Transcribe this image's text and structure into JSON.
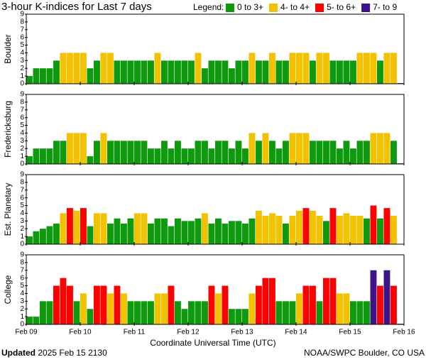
{
  "title": "3-hour K-indices for Last 7 days",
  "legend_label": "Legend:",
  "legend": [
    {
      "name": "0 to 3+",
      "color": "#0f990f"
    },
    {
      "name": "4- to 4+",
      "color": "#f2c200"
    },
    {
      "name": "5- to 6+",
      "color": "#ff0000"
    },
    {
      "name": "7- to 9",
      "color": "#3c1488"
    }
  ],
  "updated_label": "Updated",
  "updated_value": "2025 Feb 15 2130",
  "credit": "NOAA/SWPC Boulder, CO USA",
  "chart_data": [
    {
      "type": "bar",
      "ylabel": "Boulder",
      "ylim": [
        0,
        9
      ],
      "yticks": [
        0,
        1,
        2,
        3,
        4,
        5,
        6,
        7,
        8,
        9
      ],
      "values": [
        1,
        2,
        2,
        2,
        3,
        4,
        4,
        4,
        4,
        2,
        3,
        4,
        4,
        3,
        3,
        3,
        3,
        3,
        3,
        4,
        3,
        3,
        3,
        3,
        3,
        4,
        2,
        3,
        3,
        3,
        2,
        3,
        3,
        4,
        3,
        3,
        4,
        3,
        3,
        4,
        4,
        4,
        3,
        4,
        4,
        3,
        3,
        3,
        3,
        4,
        4,
        4,
        3,
        4,
        4,
        0
      ]
    },
    {
      "type": "bar",
      "ylabel": "Fredericksburg",
      "ylim": [
        0,
        9
      ],
      "yticks": [
        0,
        1,
        2,
        3,
        4,
        5,
        6,
        7,
        8,
        9
      ],
      "values": [
        1,
        2,
        2,
        2,
        3,
        3,
        4,
        4,
        4,
        1,
        3,
        4,
        3,
        3,
        3,
        3,
        3,
        3,
        2,
        2,
        3,
        2,
        3,
        2,
        2,
        3,
        3,
        2,
        3,
        3,
        2,
        3,
        2,
        4,
        3,
        4,
        3,
        2,
        3,
        4,
        4,
        4,
        3,
        3,
        3,
        3,
        2,
        3,
        2,
        3,
        3,
        4,
        4,
        4,
        3,
        0
      ]
    },
    {
      "type": "bar",
      "ylabel": "Est. Planetary",
      "ylim": [
        0,
        9
      ],
      "yticks": [
        0,
        1,
        2,
        3,
        4,
        5,
        6,
        7,
        8,
        9
      ],
      "values": [
        1,
        1.67,
        2,
        2.33,
        2.67,
        4,
        4.67,
        4.33,
        4.67,
        2.33,
        4,
        4,
        2.67,
        3.33,
        2.67,
        3.33,
        4,
        4,
        2.67,
        3.33,
        3.33,
        2.33,
        3.33,
        3,
        3,
        3.33,
        4,
        2.67,
        3.33,
        2.67,
        3,
        3,
        2.67,
        3.33,
        4.33,
        3.67,
        4,
        3.67,
        2.67,
        3.67,
        4.33,
        4.67,
        4.33,
        3.67,
        3,
        4.67,
        3.67,
        4,
        3.67,
        3.67,
        3.33,
        5,
        3.33,
        4.67,
        3.67,
        null
      ]
    },
    {
      "type": "bar",
      "ylabel": "College",
      "ylim": [
        0,
        9
      ],
      "yticks": [
        0,
        1,
        2,
        3,
        4,
        5,
        6,
        7,
        8,
        9
      ],
      "values": [
        1,
        1,
        3,
        3,
        5,
        6,
        5,
        3,
        4,
        2,
        5,
        5,
        4,
        5,
        4,
        3,
        3,
        3,
        3,
        4,
        4,
        5,
        3,
        2,
        3,
        3,
        3,
        5,
        4,
        5,
        2,
        2,
        2,
        4,
        5,
        6,
        6,
        3,
        3,
        3,
        4,
        5,
        5,
        3,
        6,
        6,
        4,
        4,
        3,
        3,
        3,
        7,
        5,
        7,
        5,
        0
      ],
      "xlabel": "Coordinate Universal Time (UTC)",
      "xlim": [
        0,
        7
      ],
      "xticks": [
        {
          "value": 0,
          "label": "Feb 09"
        },
        {
          "value": 1,
          "label": "Feb 10"
        },
        {
          "value": 2,
          "label": "Feb 11"
        },
        {
          "value": 3,
          "label": "Feb 12"
        },
        {
          "value": 4,
          "label": "Feb 13"
        },
        {
          "value": 5,
          "label": "Feb 14"
        },
        {
          "value": 6,
          "label": "Feb 15"
        },
        {
          "value": 7,
          "label": "Feb 16"
        }
      ]
    }
  ]
}
